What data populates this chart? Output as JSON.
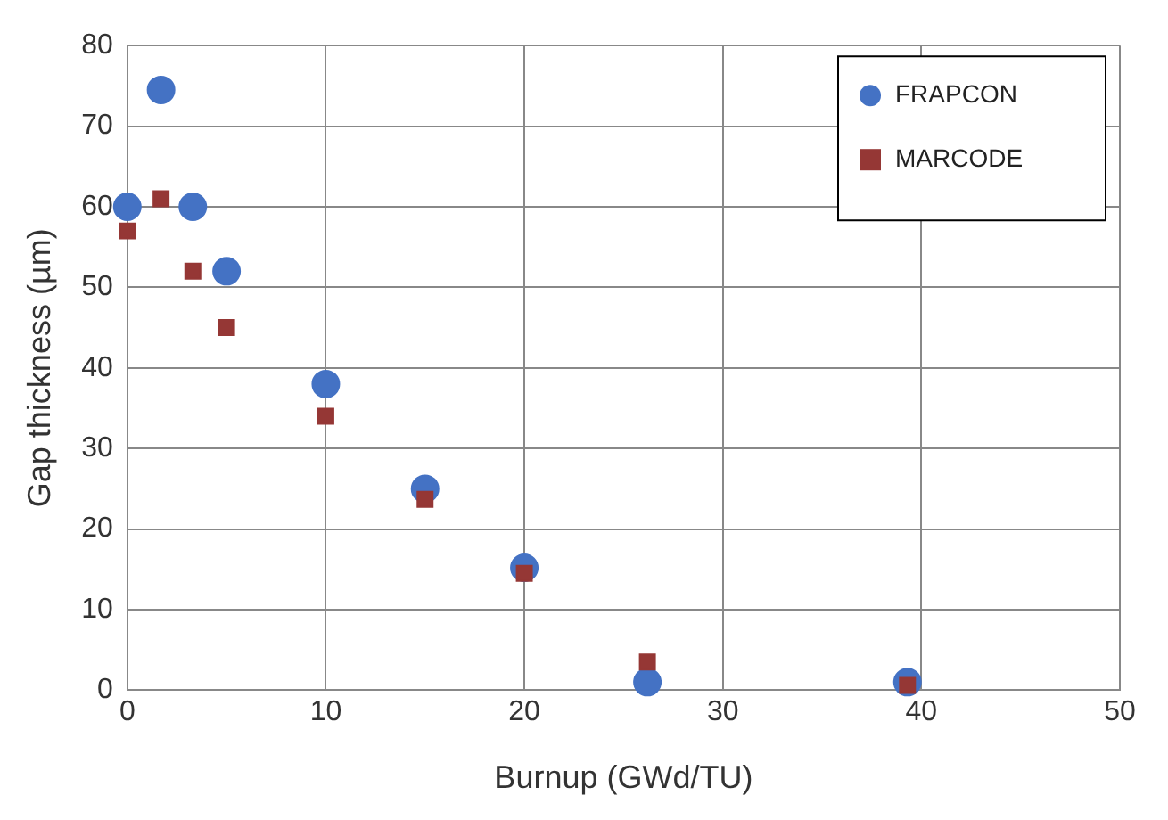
{
  "chart_data": {
    "type": "scatter",
    "xlabel": "Burnup (GWd/TU)",
    "ylabel": "Gap thickness (µm)",
    "xlim": [
      0,
      50
    ],
    "xticks": [
      0,
      10,
      20,
      30,
      40,
      50
    ],
    "ylim": [
      0,
      80
    ],
    "yticks": [
      0,
      10,
      20,
      30,
      40,
      50,
      60,
      70,
      80
    ],
    "grid": true,
    "legend": "top right",
    "series": [
      {
        "name": "FRAPCON",
        "color": "#4472c4",
        "marker": "circle",
        "x": [
          0,
          1.7,
          3.3,
          5,
          10,
          15,
          20,
          26.2,
          39.3
        ],
        "values": [
          60,
          74.5,
          60,
          52,
          38,
          25,
          15.2,
          1,
          1
        ]
      },
      {
        "name": "MARCODE",
        "color": "#953735",
        "marker": "square",
        "x": [
          0,
          1.7,
          3.3,
          5,
          10,
          15,
          20,
          26.2,
          39.3
        ],
        "values": [
          57,
          61,
          52,
          45,
          34,
          23.7,
          14.5,
          3.5,
          0.6
        ]
      }
    ]
  }
}
